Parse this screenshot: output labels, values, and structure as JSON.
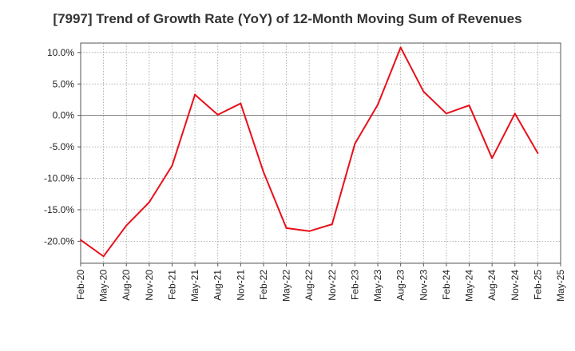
{
  "chart_data": {
    "type": "line",
    "title": "[7997]  Trend of Growth Rate (YoY) of 12-Month Moving Sum of Revenues",
    "xlabel": "",
    "ylabel": "",
    "ylim": [
      -23.5,
      11.5
    ],
    "y_ticks": [
      10,
      5,
      0,
      -5,
      -10,
      -15,
      -20
    ],
    "y_tick_labels": [
      "10.0%",
      "5.0%",
      "0.0%",
      "-5.0%",
      "-10.0%",
      "-15.0%",
      "-20.0%"
    ],
    "x_tick_labels": [
      "Feb-20",
      "May-20",
      "Aug-20",
      "Nov-20",
      "Feb-21",
      "May-21",
      "Aug-21",
      "Nov-21",
      "Feb-22",
      "May-22",
      "Aug-22",
      "Nov-22",
      "Feb-23",
      "May-23",
      "Aug-23",
      "Nov-23",
      "Feb-24",
      "May-24",
      "Aug-24",
      "Nov-24",
      "Feb-25",
      "May-25"
    ],
    "grid": true,
    "series": [
      {
        "color": "#e8101a",
        "x": [
          "Feb-20",
          "May-20",
          "Aug-20",
          "Nov-20",
          "Feb-21",
          "May-21",
          "Aug-21",
          "Nov-21",
          "Feb-22",
          "May-22",
          "Aug-22",
          "Nov-22",
          "Feb-23",
          "May-23",
          "Aug-23",
          "Nov-23",
          "Feb-24",
          "May-24",
          "Aug-24",
          "Nov-24",
          "Feb-25"
        ],
        "values": [
          -19.8,
          -22.4,
          -17.5,
          -13.8,
          -8.0,
          3.3,
          0.1,
          1.9,
          -9.0,
          -17.9,
          -18.4,
          -17.3,
          -4.5,
          1.7,
          10.8,
          3.8,
          0.3,
          1.6,
          -6.8,
          0.3,
          -6.0
        ]
      }
    ]
  }
}
